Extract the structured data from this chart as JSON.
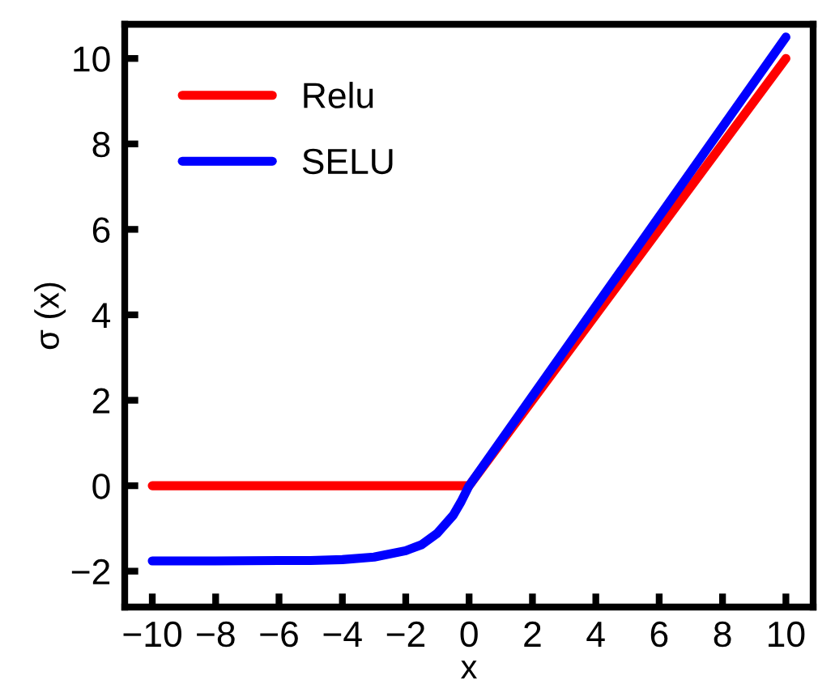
{
  "chart_data": {
    "type": "line",
    "xlabel": "x",
    "ylabel": "σ (x)",
    "xlim": [
      -10.87,
      10.86
    ],
    "ylim": [
      -2.84,
      10.8
    ],
    "xticks": [
      -10,
      -8,
      -6,
      -4,
      -2,
      0,
      2,
      4,
      6,
      8,
      10
    ],
    "yticks": [
      -2,
      0,
      2,
      4,
      6,
      8,
      10
    ],
    "grid": false,
    "legend": "top left",
    "marker": "none",
    "line_style": "solid",
    "series": [
      {
        "name": "Relu",
        "color": "#ff0000",
        "x": [
          -10,
          0,
          10
        ],
        "values": [
          0,
          0,
          10
        ]
      },
      {
        "name": "SELU",
        "color": "#0000ff",
        "x": [
          -10,
          -8,
          -6,
          -5,
          -4,
          -3,
          -2,
          -1.5,
          -1,
          -0.5,
          -0.25,
          0,
          10
        ],
        "values": [
          -1.76,
          -1.76,
          -1.75,
          -1.75,
          -1.73,
          -1.67,
          -1.52,
          -1.38,
          -1.11,
          -0.69,
          -0.37,
          0,
          10.5
        ]
      }
    ]
  }
}
